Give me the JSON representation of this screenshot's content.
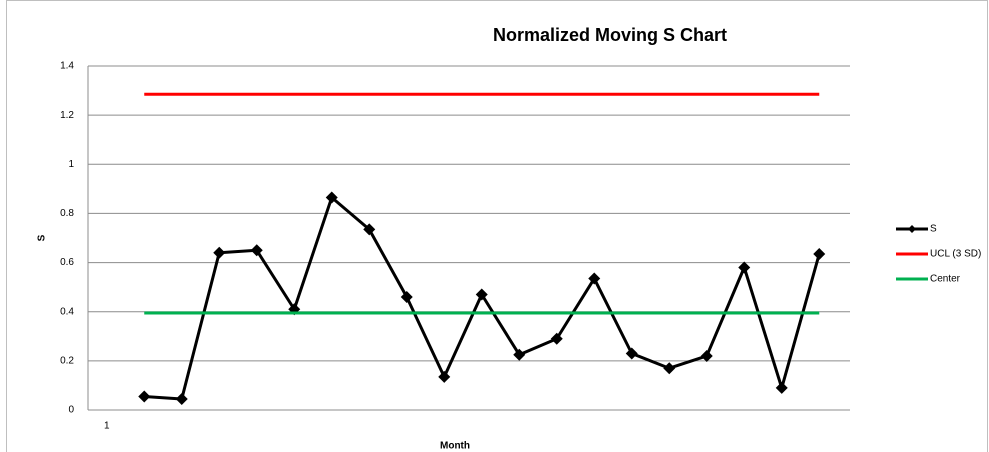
{
  "chart_data": {
    "type": "line",
    "title": "Normalized Moving S Chart",
    "x_label": "Month",
    "y_label": "S",
    "categories": [
      "1",
      null,
      null,
      null,
      null,
      null,
      null,
      null,
      null,
      null,
      null,
      null,
      null,
      null,
      null,
      null,
      null,
      null,
      null,
      null
    ],
    "series": [
      {
        "name": "S",
        "color": "#000000",
        "marker": "diamond",
        "values": [
          null,
          0.055,
          0.045,
          0.64,
          0.65,
          0.41,
          0.865,
          0.735,
          0.46,
          0.135,
          0.47,
          0.225,
          0.29,
          0.535,
          0.23,
          0.17,
          0.22,
          0.58,
          0.09,
          0.635
        ]
      },
      {
        "name": "UCL (3 SD)",
        "color": "#ff0000",
        "values": [
          null,
          1.285,
          1.285,
          1.285,
          1.285,
          1.285,
          1.285,
          1.285,
          1.285,
          1.285,
          1.285,
          1.285,
          1.285,
          1.285,
          1.285,
          1.285,
          1.285,
          1.285,
          1.285,
          1.285
        ]
      },
      {
        "name": "Center",
        "color": "#00b050",
        "values": [
          null,
          0.395,
          0.395,
          0.395,
          0.395,
          0.395,
          0.395,
          0.395,
          0.395,
          0.395,
          0.395,
          0.395,
          0.395,
          0.395,
          0.395,
          0.395,
          0.395,
          0.395,
          0.395,
          0.395
        ]
      }
    ],
    "ylim": [
      0,
      1.4
    ],
    "yticks": [
      0,
      0.2,
      0.4,
      0.6,
      0.8,
      1,
      1.2,
      1.4
    ],
    "grid": true,
    "legend": "right"
  }
}
